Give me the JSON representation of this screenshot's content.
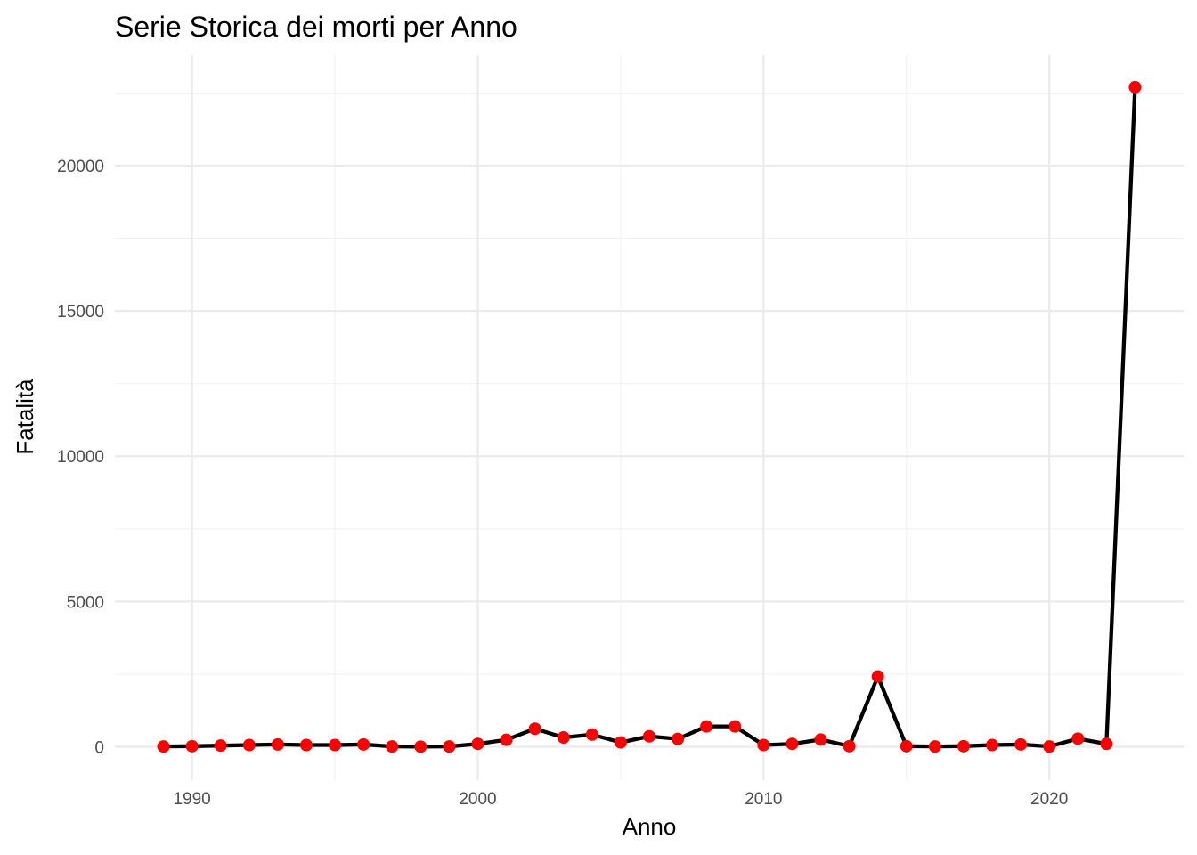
{
  "chart_data": {
    "type": "line",
    "title": "Serie Storica dei morti per Anno",
    "xlabel": "Anno",
    "ylabel": "Fatalità",
    "xlim": [
      1987.3,
      2024.7
    ],
    "ylim": [
      -1150,
      23800
    ],
    "x_ticks": [
      1990,
      2000,
      2010,
      2020
    ],
    "x_tick_labels": [
      "1990",
      "2000",
      "2010",
      "2020"
    ],
    "x_minor_ticks": [
      1995,
      2005,
      2015
    ],
    "y_ticks": [
      0,
      5000,
      10000,
      15000,
      20000
    ],
    "y_tick_labels": [
      "0",
      "5000",
      "10000",
      "15000",
      "20000"
    ],
    "y_minor_ticks": [
      2500,
      7500,
      12500,
      17500,
      22500
    ],
    "grid": true,
    "line_color": "#000000",
    "point_color": "#ff0000",
    "x": [
      1989,
      1990,
      1991,
      1992,
      1993,
      1994,
      1995,
      1996,
      1997,
      1998,
      1999,
      2000,
      2001,
      2002,
      2003,
      2004,
      2005,
      2006,
      2007,
      2008,
      2009,
      2010,
      2011,
      2012,
      2013,
      2014,
      2015,
      2016,
      2017,
      2018,
      2019,
      2020,
      2021,
      2022,
      2023
    ],
    "values": [
      10,
      20,
      40,
      60,
      80,
      60,
      60,
      80,
      10,
      5,
      10,
      100,
      240,
      620,
      320,
      420,
      150,
      360,
      270,
      700,
      700,
      60,
      100,
      250,
      20,
      2420,
      20,
      10,
      20,
      60,
      80,
      10,
      280,
      100,
      22700
    ]
  }
}
